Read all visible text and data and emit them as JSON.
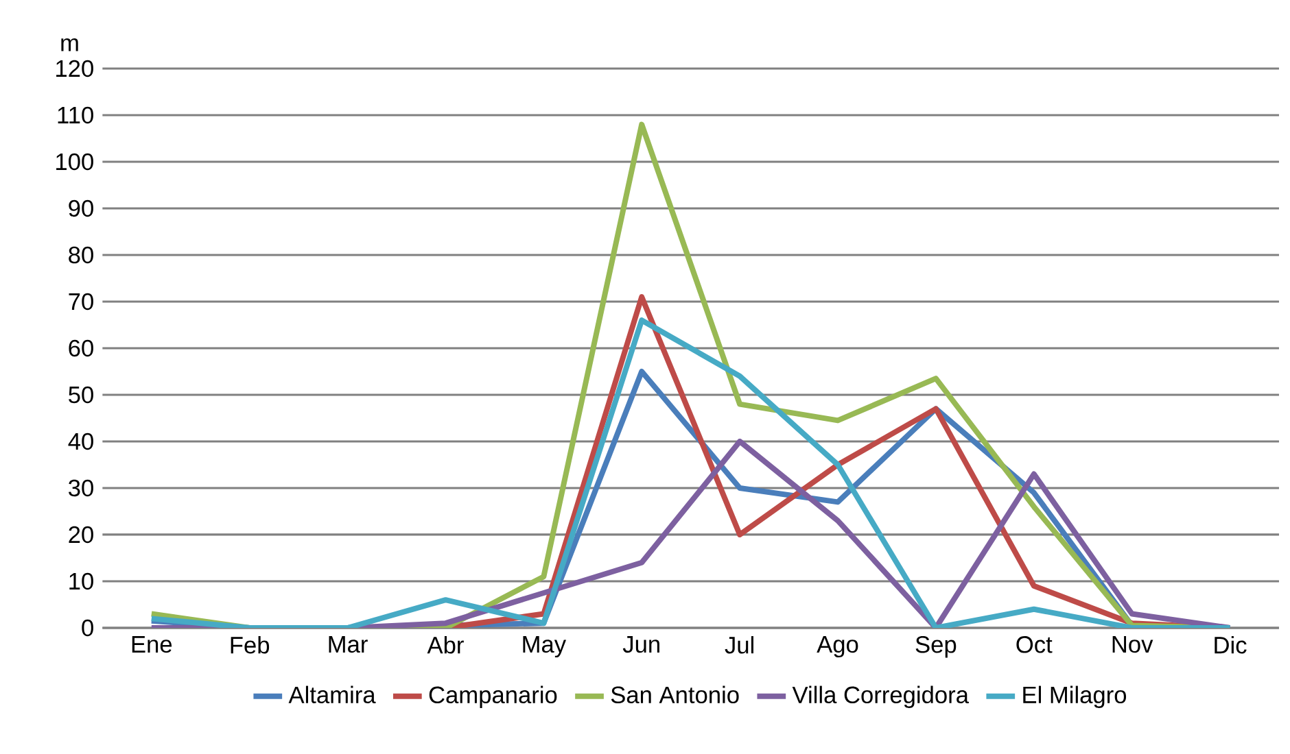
{
  "chart_data": {
    "type": "line",
    "ylabel": "m",
    "categories": [
      "Ene",
      "Feb",
      "Mar",
      "Abr",
      "May",
      "Jun",
      "Jul",
      "Ago",
      "Sep",
      "Oct",
      "Nov",
      "Dic"
    ],
    "series": [
      {
        "name": "Altamira",
        "color": "#4a7ebb",
        "values": [
          1.5,
          0,
          0,
          0.5,
          1,
          55,
          30,
          27,
          47,
          29,
          0.5,
          0
        ]
      },
      {
        "name": "Campanario",
        "color": "#be4b48",
        "values": [
          null,
          null,
          0,
          0,
          3,
          71,
          20,
          35,
          47,
          9,
          1,
          0
        ]
      },
      {
        "name": "San Antonio",
        "color": "#98b954",
        "values": [
          3,
          0,
          0,
          0,
          11,
          108,
          48,
          44.5,
          53.5,
          26,
          0.5,
          0
        ]
      },
      {
        "name": "Villa Corregidora",
        "color": "#7d60a0",
        "values": [
          0,
          0,
          0,
          1,
          7.5,
          14,
          40,
          23,
          0,
          33,
          3,
          0
        ]
      },
      {
        "name": "El Milagro",
        "color": "#46aac5",
        "values": [
          2,
          0,
          0,
          6,
          1,
          66,
          54,
          35,
          0,
          4,
          0,
          0
        ]
      }
    ],
    "ylim": [
      0,
      120
    ],
    "yticks": [
      0,
      10,
      20,
      30,
      40,
      50,
      60,
      70,
      80,
      90,
      100,
      110,
      120
    ],
    "grid": "y",
    "legend": "bottom",
    "marker": "none",
    "line_style": "solid"
  }
}
